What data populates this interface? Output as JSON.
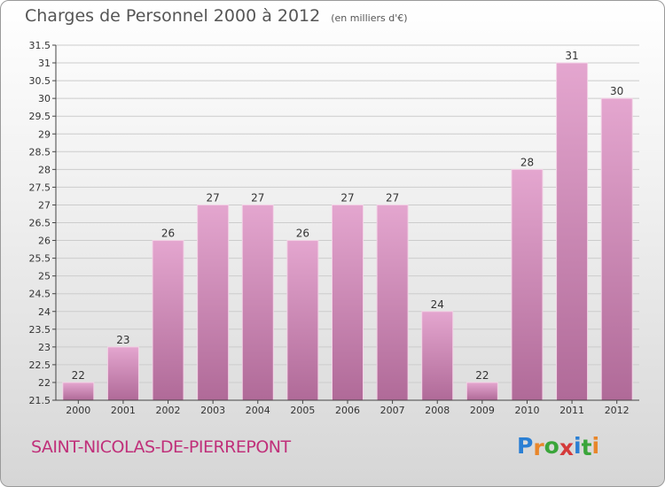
{
  "title": "Charges de Personnel 2000 à 2012",
  "subtitle": "(en milliers d'€)",
  "commune": "SAINT-NICOLAS-DE-PIERREPONT",
  "logo": {
    "text": "Proxiti",
    "letters": [
      "P",
      "r",
      "o",
      "x",
      "i",
      "t",
      "i"
    ],
    "colors": [
      "#2a7fd4",
      "#e8862a",
      "#3aa53a",
      "#d43a3a",
      "#2a7fd4",
      "#3aa53a",
      "#e8862a"
    ]
  },
  "colors": {
    "bar_top": "#e4a6cf",
    "bar_bottom": "#b06a98",
    "axis": "#444444",
    "grid": "#cccccc",
    "text": "#333333",
    "brand": "#c0307a"
  },
  "chart_data": {
    "type": "bar",
    "title": "Charges de Personnel 2000 à 2012",
    "subtitle": "(en milliers d'€)",
    "categories": [
      "2000",
      "2001",
      "2002",
      "2003",
      "2004",
      "2005",
      "2006",
      "2007",
      "2008",
      "2009",
      "2010",
      "2011",
      "2012"
    ],
    "values": [
      22,
      23,
      26,
      27,
      27,
      26,
      27,
      27,
      24,
      22,
      28,
      31,
      30
    ],
    "value_labels": [
      "22",
      "23",
      "26",
      "27",
      "27",
      "26",
      "27",
      "27",
      "24",
      "22",
      "28",
      "31",
      "30"
    ],
    "ylim": [
      21.5,
      31.5
    ],
    "yticks": [
      21.5,
      22,
      22.5,
      23,
      23.5,
      24,
      24.5,
      25,
      25.5,
      26,
      26.5,
      27,
      27.5,
      28,
      28.5,
      29,
      29.5,
      30,
      30.5,
      31,
      31.5
    ],
    "ytick_labels": [
      "21.5",
      "22",
      "22.5",
      "23",
      "23.5",
      "24",
      "24.5",
      "25",
      "25.5",
      "26",
      "26.5",
      "27",
      "27.5",
      "28",
      "28.5",
      "29",
      "29.5",
      "30",
      "30.5",
      "31",
      "31.5"
    ],
    "xlabel": "",
    "ylabel": "",
    "grid": true,
    "legend": "none"
  }
}
